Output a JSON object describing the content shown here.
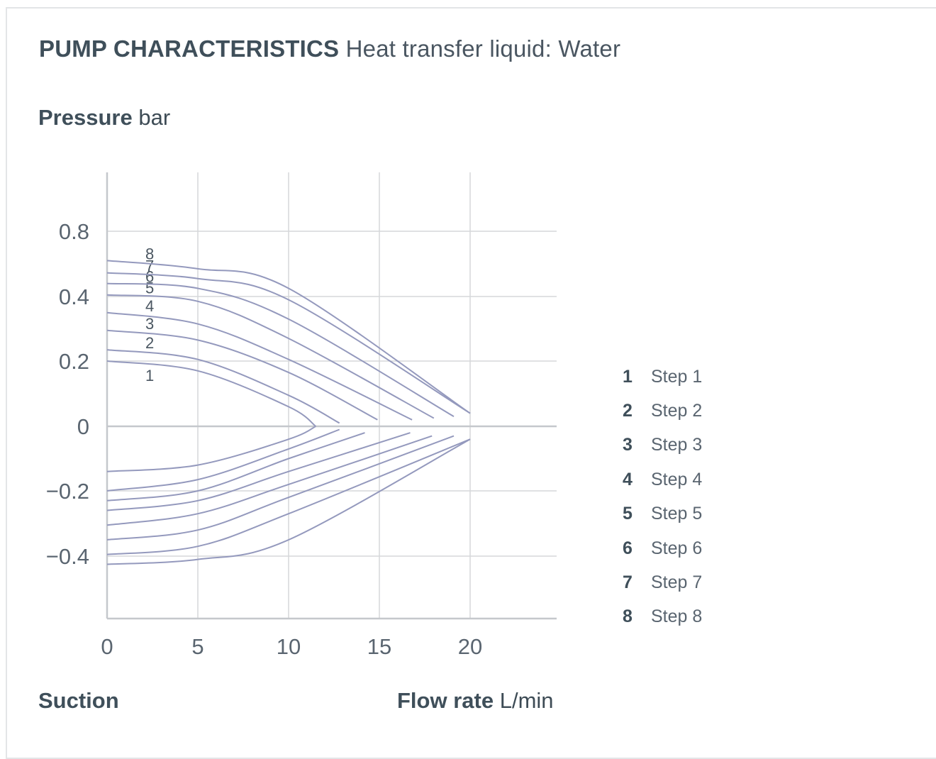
{
  "header": {
    "title": "PUMP CHARACTERISTICS",
    "subtitle": "Heat transfer liquid: Water"
  },
  "axes": {
    "y_label": "Pressure",
    "y_unit": "bar",
    "x_label": "Flow rate",
    "x_unit": "L/min",
    "suction_label": "Suction"
  },
  "legend": [
    {
      "num": "1",
      "label": "Step 1"
    },
    {
      "num": "2",
      "label": "Step 2"
    },
    {
      "num": "3",
      "label": "Step 3"
    },
    {
      "num": "4",
      "label": "Step 4"
    },
    {
      "num": "5",
      "label": "Step 5"
    },
    {
      "num": "6",
      "label": "Step 6"
    },
    {
      "num": "7",
      "label": "Step 7"
    },
    {
      "num": "8",
      "label": "Step 8"
    }
  ],
  "chart_data": {
    "type": "line",
    "title": "PUMP CHARACTERISTICS",
    "subtitle": "Heat transfer liquid: Water",
    "xlabel": "Flow rate L/min",
    "ylabel": "Pressure bar",
    "xlim": [
      0,
      25
    ],
    "x_ticks": [
      "0",
      "5",
      "10",
      "15",
      "20"
    ],
    "y_ticks": [
      {
        "value": 0.8,
        "label": "0.8"
      },
      {
        "value": 0.4,
        "label": "0.4"
      },
      {
        "value": 0.2,
        "label": "0.2"
      },
      {
        "value": 0,
        "label": "0"
      },
      {
        "value": -0.2,
        "label": "−0.2"
      },
      {
        "value": -0.4,
        "label": "−0.4"
      }
    ],
    "grid": true,
    "line_color": "#9499bd",
    "series": [
      {
        "name": "1",
        "pressure": [
          [
            0,
            0.2
          ],
          [
            5,
            0.17
          ],
          [
            10,
            0.06
          ],
          [
            11.5,
            0.0
          ]
        ],
        "suction": [
          [
            0,
            -0.14
          ],
          [
            5,
            -0.12
          ],
          [
            10,
            -0.04
          ],
          [
            11.5,
            0.0
          ]
        ]
      },
      {
        "name": "2",
        "pressure": [
          [
            0,
            0.235
          ],
          [
            5,
            0.205
          ],
          [
            10,
            0.095
          ],
          [
            12.8,
            0.01
          ]
        ],
        "suction": [
          [
            0,
            -0.2
          ],
          [
            5,
            -0.165
          ],
          [
            10,
            -0.07
          ],
          [
            12.8,
            -0.01
          ]
        ]
      },
      {
        "name": "3",
        "pressure": [
          [
            0,
            0.295
          ],
          [
            5,
            0.265
          ],
          [
            10,
            0.165
          ],
          [
            14.9,
            0.02
          ]
        ],
        "suction": [
          [
            0,
            -0.23
          ],
          [
            5,
            -0.2
          ],
          [
            10,
            -0.1
          ],
          [
            14.2,
            -0.02
          ]
        ]
      },
      {
        "name": "4",
        "pressure": [
          [
            0,
            0.35
          ],
          [
            5,
            0.315
          ],
          [
            10,
            0.205
          ],
          [
            16.8,
            0.02
          ]
        ],
        "suction": [
          [
            0,
            -0.26
          ],
          [
            5,
            -0.23
          ],
          [
            10,
            -0.14
          ],
          [
            16.7,
            -0.02
          ]
        ]
      },
      {
        "name": "5",
        "pressure": [
          [
            0,
            0.41
          ],
          [
            5,
            0.385
          ],
          [
            10,
            0.27
          ],
          [
            18.0,
            0.025
          ]
        ],
        "suction": [
          [
            0,
            -0.305
          ],
          [
            5,
            -0.27
          ],
          [
            10,
            -0.18
          ],
          [
            17.9,
            -0.03
          ]
        ]
      },
      {
        "name": "6",
        "pressure": [
          [
            0,
            0.48
          ],
          [
            5,
            0.45
          ],
          [
            10,
            0.33
          ],
          [
            19.1,
            0.03
          ]
        ],
        "suction": [
          [
            0,
            -0.35
          ],
          [
            5,
            -0.32
          ],
          [
            10,
            -0.22
          ],
          [
            19.1,
            -0.03
          ]
        ]
      },
      {
        "name": "7",
        "pressure": [
          [
            0,
            0.545
          ],
          [
            5,
            0.51
          ],
          [
            10,
            0.39
          ],
          [
            20.0,
            0.04
          ]
        ],
        "suction": [
          [
            0,
            -0.395
          ],
          [
            5,
            -0.37
          ],
          [
            10,
            -0.27
          ],
          [
            20.0,
            -0.04
          ]
        ]
      },
      {
        "name": "8",
        "pressure": [
          [
            0,
            0.62
          ],
          [
            5,
            0.57
          ],
          [
            10,
            0.45
          ],
          [
            20.0,
            0.04
          ]
        ],
        "suction": [
          [
            0,
            -0.425
          ],
          [
            5,
            -0.41
          ],
          [
            10,
            -0.35
          ],
          [
            20.0,
            -0.04
          ]
        ]
      }
    ]
  }
}
